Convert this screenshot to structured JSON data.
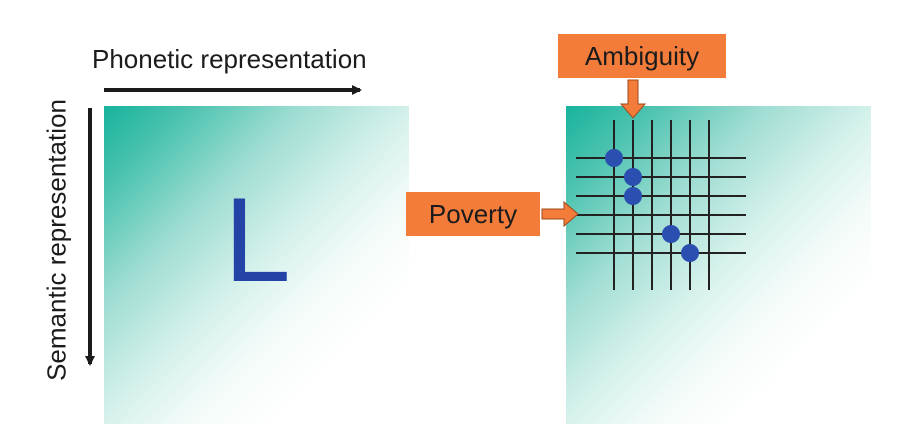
{
  "axes": {
    "x_label": "Phonetic representation",
    "y_label": "Semantic representation"
  },
  "left_panel": {
    "letter": "L"
  },
  "callouts": {
    "ambiguity": "Ambiguity",
    "poverty": "Poverty"
  },
  "grid": {
    "vertical_lines": 6,
    "horizontal_lines": 6,
    "points": [
      {
        "col": 1,
        "row": 1
      },
      {
        "col": 2,
        "row": 2
      },
      {
        "col": 2,
        "row": 3
      },
      {
        "col": 4,
        "row": 5
      },
      {
        "col": 5,
        "row": 6
      }
    ]
  },
  "colors": {
    "gradient_start": "#17b39c",
    "letter": "#2343a6",
    "point": "#2a4fb0",
    "callout_fill": "#f47c3a",
    "arrow_fill": "#f47c3a",
    "axis_arrow": "#1b1b1b",
    "grid_line": "#222222"
  }
}
